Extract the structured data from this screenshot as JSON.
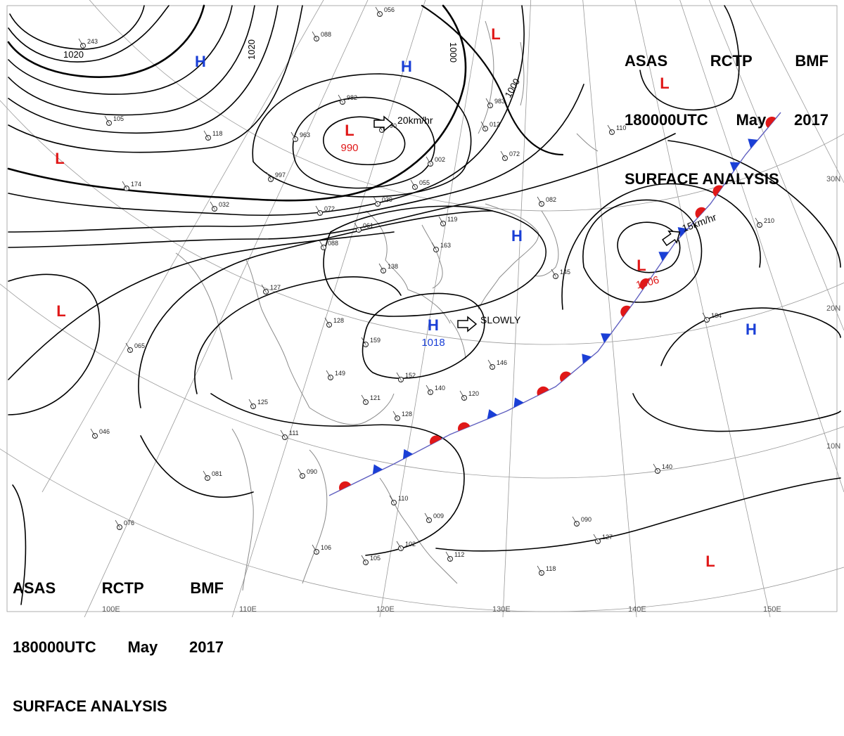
{
  "header": {
    "agency": "ASAS",
    "station": "RCTP",
    "product_code": "BMF",
    "time": "180000UTC",
    "month": "May",
    "year": "2017",
    "analysis": "SURFACE ANALYSIS"
  },
  "colors": {
    "high": "#1a3fd6",
    "low": "#e01818",
    "warm_front": "#e01818",
    "cold_front": "#1a3fd6",
    "isobar": "#000000",
    "grid": "#9a9a9a",
    "coast": "#8a8a8a"
  },
  "pressure_centers": [
    {
      "type": "H",
      "label": "H",
      "value": ""
    },
    {
      "type": "H",
      "label": "H",
      "value": ""
    },
    {
      "type": "L",
      "label": "L",
      "value": ""
    },
    {
      "type": "L",
      "label": "L",
      "value": ""
    },
    {
      "type": "L",
      "label": "L",
      "value": "990"
    },
    {
      "type": "H",
      "label": "H",
      "value": ""
    },
    {
      "type": "H",
      "label": "H",
      "value": "1018"
    },
    {
      "type": "L",
      "label": "L",
      "value": ""
    },
    {
      "type": "L",
      "label": "L",
      "value": "1006"
    },
    {
      "type": "H",
      "label": "H",
      "value": ""
    },
    {
      "type": "L",
      "label": "L",
      "value": ""
    },
    {
      "type": "L",
      "label": "L",
      "value": ""
    }
  ],
  "isobar_labels": [
    "1020",
    "1020",
    "1000",
    "1000"
  ],
  "motion": [
    {
      "text": "20km/hr"
    },
    {
      "text": "SLOWLY"
    },
    {
      "text": "15km/hr"
    }
  ],
  "lat_labels": [
    "30N",
    "20N",
    "10N"
  ],
  "lon_labels": [
    "100E",
    "110E",
    "120E",
    "130E",
    "140E",
    "150E"
  ],
  "stations": [
    "243",
    "056",
    "088",
    "983",
    "982",
    "990",
    "105",
    "118",
    "963",
    "997",
    "012",
    "072",
    "002",
    "055",
    "110",
    "174",
    "032",
    "072",
    "061",
    "088",
    "039",
    "119",
    "163",
    "138",
    "082",
    "145",
    "210",
    "127",
    "128",
    "159",
    "146",
    "149",
    "184",
    "152",
    "140",
    "125",
    "121",
    "111",
    "128",
    "120",
    "065",
    "046",
    "081",
    "090",
    "106",
    "105",
    "110",
    "112",
    "118",
    "090",
    "127",
    "140",
    "076",
    "009",
    "102"
  ]
}
